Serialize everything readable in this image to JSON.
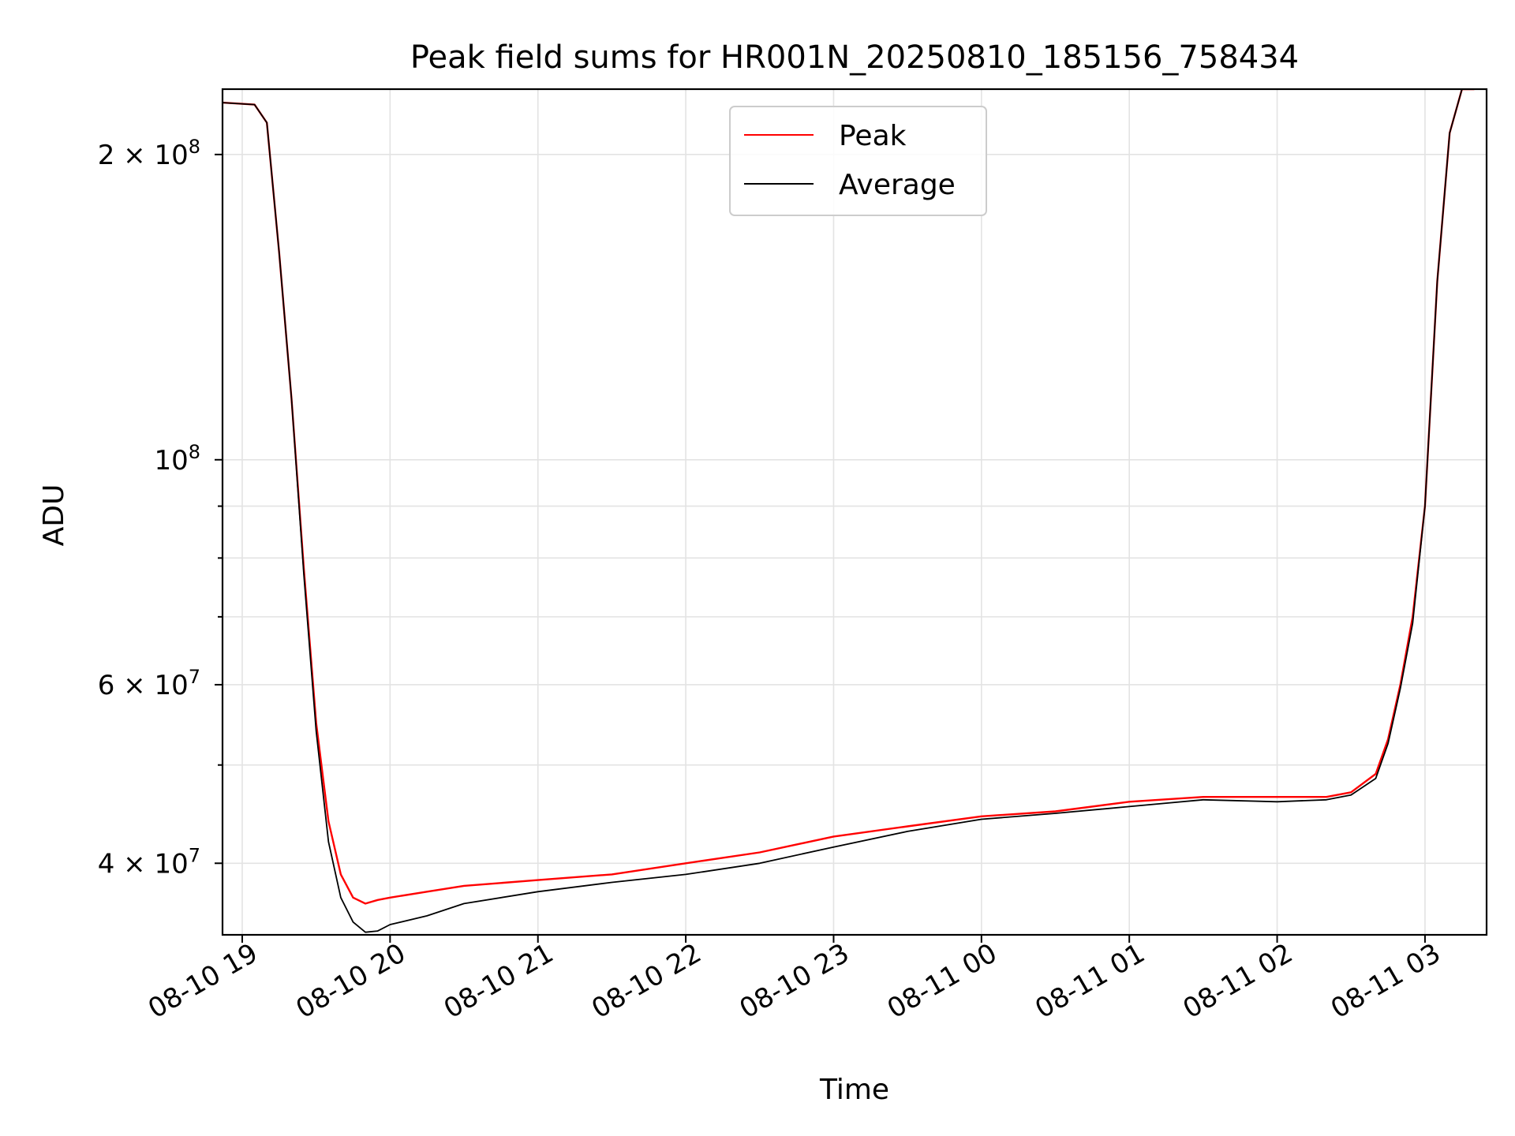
{
  "chart_data": {
    "type": "line",
    "title": "Peak field sums for HR001N_20250810_185156_758434",
    "xlabel": "Time",
    "ylabel": "ADU",
    "yscale": "log",
    "grid": true,
    "legend_position": "top-center",
    "xlim": [
      "2025-08-10 18:52",
      "2025-08-11 03:25"
    ],
    "ylim": [
      34000000,
      232000000
    ],
    "x_ticks": [
      {
        "label": "08-10 19",
        "value": "2025-08-10 19:00"
      },
      {
        "label": "08-10 20",
        "value": "2025-08-10 20:00"
      },
      {
        "label": "08-10 21",
        "value": "2025-08-10 21:00"
      },
      {
        "label": "08-10 22",
        "value": "2025-08-10 22:00"
      },
      {
        "label": "08-10 23",
        "value": "2025-08-10 23:00"
      },
      {
        "label": "08-11 00",
        "value": "2025-08-11 00:00"
      },
      {
        "label": "08-11 01",
        "value": "2025-08-11 01:00"
      },
      {
        "label": "08-11 02",
        "value": "2025-08-11 02:00"
      },
      {
        "label": "08-11 03",
        "value": "2025-08-11 03:00"
      }
    ],
    "y_ticks": [
      {
        "base": "4 × 10",
        "exp": "7",
        "value": 40000000
      },
      {
        "base": "6 × 10",
        "exp": "7",
        "value": 60000000
      },
      {
        "base": "10",
        "exp": "8",
        "value": 100000000
      },
      {
        "base": "2 × 10",
        "exp": "8",
        "value": 200000000
      }
    ],
    "y_minor_ticks": [
      50000000,
      70000000,
      80000000,
      90000000
    ],
    "series": [
      {
        "name": "Peak",
        "color": "#ff0000",
        "x": [
          "2025-08-10 18:52",
          "2025-08-10 19:05",
          "2025-08-10 19:10",
          "2025-08-10 19:15",
          "2025-08-10 19:20",
          "2025-08-10 19:25",
          "2025-08-10 19:30",
          "2025-08-10 19:35",
          "2025-08-10 19:40",
          "2025-08-10 19:45",
          "2025-08-10 19:50",
          "2025-08-10 19:55",
          "2025-08-10 20:00",
          "2025-08-10 20:15",
          "2025-08-10 20:30",
          "2025-08-10 21:00",
          "2025-08-10 21:30",
          "2025-08-10 22:00",
          "2025-08-10 22:30",
          "2025-08-10 23:00",
          "2025-08-10 23:30",
          "2025-08-11 00:00",
          "2025-08-11 00:30",
          "2025-08-11 01:00",
          "2025-08-11 01:30",
          "2025-08-11 02:00",
          "2025-08-11 02:20",
          "2025-08-11 02:30",
          "2025-08-11 02:40",
          "2025-08-11 02:45",
          "2025-08-11 02:50",
          "2025-08-11 02:55",
          "2025-08-11 03:00",
          "2025-08-11 03:05",
          "2025-08-11 03:10",
          "2025-08-11 03:15",
          "2025-08-11 03:20"
        ],
        "y": [
          225000000,
          224000000,
          215000000,
          160000000,
          115000000,
          78000000,
          55000000,
          44000000,
          39000000,
          37000000,
          36500000,
          36800000,
          37000000,
          37500000,
          38000000,
          38500000,
          39000000,
          40000000,
          41000000,
          42500000,
          43500000,
          44500000,
          45000000,
          46000000,
          46500000,
          46500000,
          46500000,
          47000000,
          49000000,
          53000000,
          60000000,
          70000000,
          90000000,
          150000000,
          210000000,
          232000000,
          232000000
        ]
      },
      {
        "name": "Average",
        "color": "#000000",
        "x": [
          "2025-08-10 18:52",
          "2025-08-10 19:05",
          "2025-08-10 19:10",
          "2025-08-10 19:15",
          "2025-08-10 19:20",
          "2025-08-10 19:25",
          "2025-08-10 19:30",
          "2025-08-10 19:35",
          "2025-08-10 19:40",
          "2025-08-10 19:45",
          "2025-08-10 19:50",
          "2025-08-10 19:55",
          "2025-08-10 20:00",
          "2025-08-10 20:15",
          "2025-08-10 20:30",
          "2025-08-10 21:00",
          "2025-08-10 21:30",
          "2025-08-10 22:00",
          "2025-08-10 22:30",
          "2025-08-10 23:00",
          "2025-08-10 23:30",
          "2025-08-11 00:00",
          "2025-08-11 00:30",
          "2025-08-11 01:00",
          "2025-08-11 01:30",
          "2025-08-11 02:00",
          "2025-08-11 02:20",
          "2025-08-11 02:30",
          "2025-08-11 02:40",
          "2025-08-11 02:45",
          "2025-08-11 02:50",
          "2025-08-11 02:55",
          "2025-08-11 03:00",
          "2025-08-11 03:05",
          "2025-08-11 03:10",
          "2025-08-11 03:15",
          "2025-08-11 03:20"
        ],
        "y": [
          225000000,
          224000000,
          215000000,
          160000000,
          115000000,
          77000000,
          54000000,
          42000000,
          37000000,
          35000000,
          34200000,
          34300000,
          34800000,
          35500000,
          36500000,
          37500000,
          38300000,
          39000000,
          40000000,
          41500000,
          43000000,
          44200000,
          44800000,
          45500000,
          46200000,
          46000000,
          46200000,
          46700000,
          48500000,
          52500000,
          59500000,
          69000000,
          90000000,
          150000000,
          210000000,
          232000000,
          232000000
        ]
      }
    ]
  }
}
